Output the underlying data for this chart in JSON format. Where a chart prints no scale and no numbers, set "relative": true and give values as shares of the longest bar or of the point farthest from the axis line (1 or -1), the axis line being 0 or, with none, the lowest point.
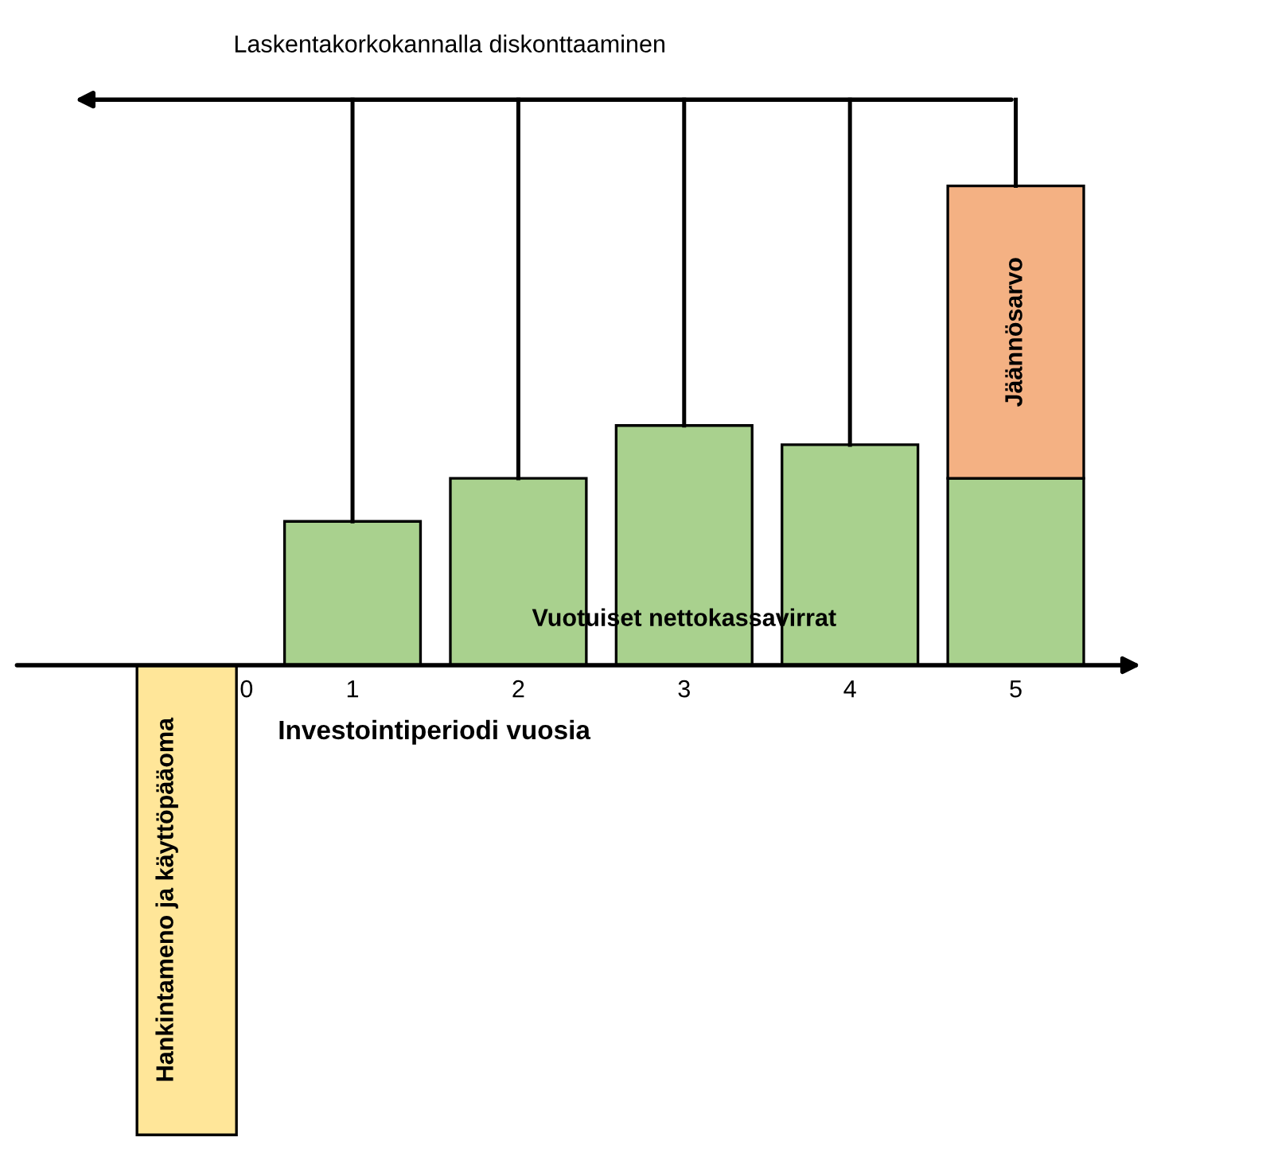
{
  "chart_data": {
    "type": "bar",
    "title": "Laskentakorkokannalla diskonttaaminen",
    "xlabel": "Investointiperiodi vuosia",
    "categories": [
      "0",
      "1",
      "2",
      "3",
      "4",
      "5"
    ],
    "relative": true,
    "stacked": true,
    "grid": false,
    "series": [
      {
        "name": "Hankintameno ja käyttöpääoma",
        "color": "#ffe699",
        "values": [
          -0.98,
          null,
          null,
          null,
          null,
          null
        ]
      },
      {
        "name": "Vuotuiset nettokassavirrat",
        "color": "#a9d18e",
        "values": [
          null,
          0.3,
          0.39,
          0.5,
          0.46,
          0.39
        ]
      },
      {
        "name": "Jäännösarvo",
        "color": "#f4b183",
        "values": [
          null,
          null,
          null,
          null,
          null,
          0.61
        ]
      }
    ]
  }
}
